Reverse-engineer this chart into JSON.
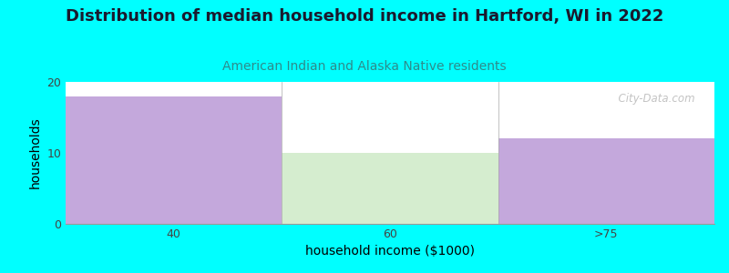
{
  "title": "Distribution of median household income in Hartford, WI in 2022",
  "subtitle": "American Indian and Alaska Native residents",
  "xlabel": "household income ($1000)",
  "ylabel": "households",
  "background_color": "#00FFFF",
  "plot_bg_color": "#FFFFFF",
  "categories": [
    "40",
    "60",
    ">75"
  ],
  "values": [
    18,
    10,
    12
  ],
  "bar_colors": [
    "#C4A8DC",
    "#D5EDCF",
    "#C4A8DC"
  ],
  "ylim": [
    0,
    20
  ],
  "yticks": [
    0,
    10,
    20
  ],
  "title_fontsize": 13,
  "title_color": "#1a1a2e",
  "subtitle_fontsize": 10,
  "subtitle_color": "#2E8B8B",
  "axis_label_fontsize": 10,
  "tick_fontsize": 9,
  "watermark": "  City-Data.com"
}
